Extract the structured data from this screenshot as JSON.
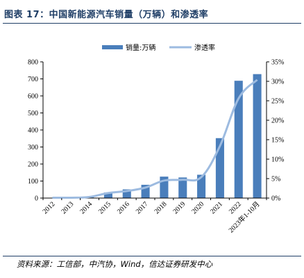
{
  "figure_title": "图表 17：中国新能源汽车销量（万辆）和渗透率",
  "source_note": "资料来源：工信部，中汽协，Wind，信达证券研发中心",
  "colors": {
    "bar": "#4a7ebb",
    "line": "#9dbbe0",
    "title": "#1f3e66",
    "axis": "#000000"
  },
  "chart_data": {
    "type": "bar",
    "categories": [
      "2012",
      "2013",
      "2014",
      "2015",
      "2016",
      "2017",
      "2018",
      "2019",
      "2020",
      "2021",
      "2022",
      "2023年1-10月"
    ],
    "series": [
      {
        "name": "销量:万辆",
        "type": "bar",
        "axis": "left",
        "values": [
          1.3,
          1.8,
          7.5,
          33,
          51,
          78,
          126,
          121,
          137,
          352,
          689,
          728
        ]
      },
      {
        "name": "渗透率",
        "type": "line",
        "axis": "right",
        "values": [
          0.1,
          0.1,
          0.3,
          1.3,
          1.8,
          2.7,
          4.5,
          4.7,
          5.4,
          13.4,
          25.6,
          30.4
        ]
      }
    ],
    "y_left": {
      "min": 0,
      "max": 800,
      "ticks": [
        "0",
        "100",
        "200",
        "300",
        "400",
        "500",
        "600",
        "700",
        "800"
      ]
    },
    "y_right": {
      "min": 0,
      "max": 35,
      "ticks": [
        "0%",
        "5%",
        "10%",
        "15%",
        "20%",
        "25%",
        "30%",
        "35%"
      ]
    },
    "legend_position": "top-center",
    "grid": false
  }
}
